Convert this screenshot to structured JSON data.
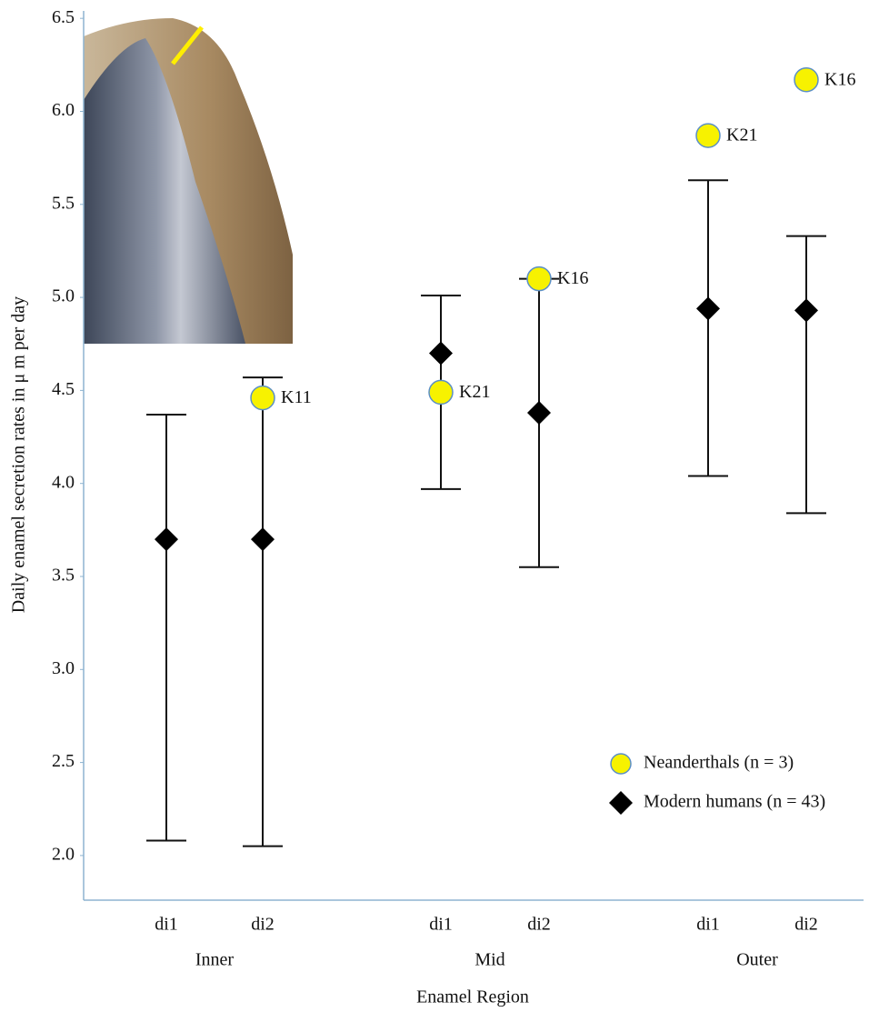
{
  "chart_data": {
    "type": "errorbar",
    "y_label": "Daily enamel secretion rates in μ m per day",
    "x_label": "Enamel Region",
    "categories": [
      "di1",
      "di2",
      "di1",
      "di2",
      "di1",
      "di2"
    ],
    "groups": [
      "Inner",
      "Mid",
      "Outer"
    ],
    "ylim": [
      1.76,
      6.54
    ],
    "yticks": [
      {
        "value": 2,
        "label": "2.0"
      },
      2.5,
      {
        "value": 3,
        "label": "3.0"
      },
      3.5,
      {
        "value": 4,
        "label": "4.0"
      },
      4.5,
      {
        "value": 5,
        "label": "5.0"
      },
      5.5,
      {
        "value": 6,
        "label": "6.0"
      },
      6.5
    ],
    "legend_position": "lower right",
    "series": [
      {
        "name": "Neanderthals (n = 3)",
        "color": "#f7f200",
        "marker": "circle",
        "values": [
          null,
          4.46,
          4.49,
          5.1,
          5.87,
          6.17
        ],
        "point_labels": [
          null,
          "K11",
          "K21",
          "K16",
          "K21",
          "K16"
        ]
      },
      {
        "name": "Modern humans (n = 43)",
        "color": "#000000",
        "marker": "diamond",
        "values": [
          3.7,
          3.7,
          4.7,
          4.38,
          4.94,
          4.93
        ],
        "low": [
          2.08,
          2.05,
          3.97,
          3.55,
          4.04,
          3.84
        ],
        "high": [
          4.37,
          4.57,
          5.01,
          5.1,
          5.63,
          5.33
        ]
      }
    ]
  }
}
